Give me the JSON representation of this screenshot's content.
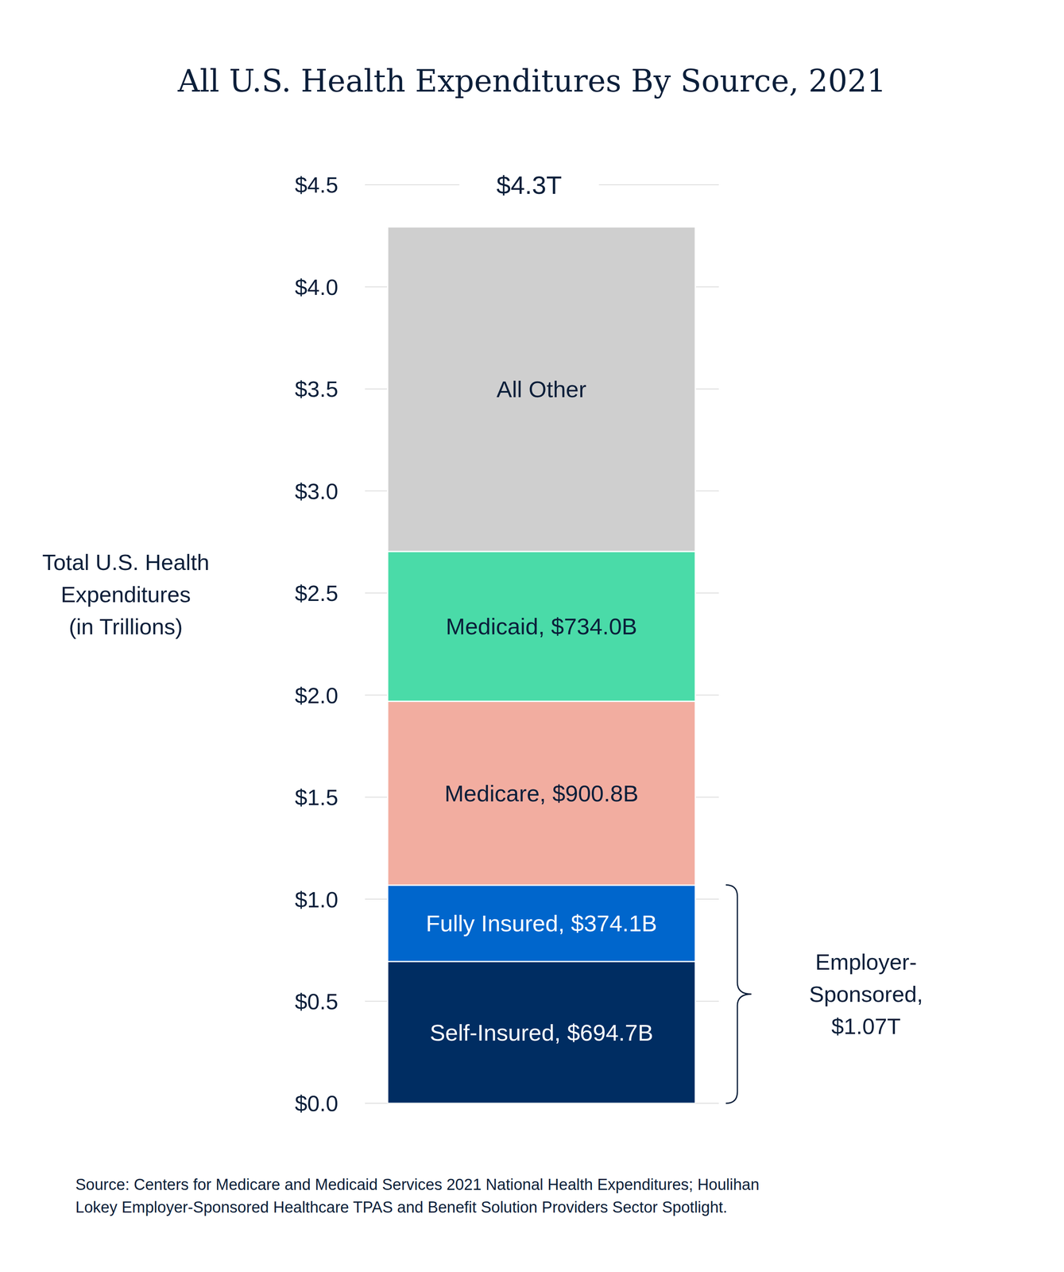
{
  "chart_data": {
    "type": "bar",
    "title": "All U.S. Health Expenditures By Source, 2021",
    "y_label": [
      "Total U.S. Health",
      "Expenditures",
      "(in Trillions)"
    ],
    "categories": [
      null
    ],
    "stacked": true,
    "data_labels": true,
    "grid": true,
    "tick_labels": "y",
    "ylim": [
      0,
      4.5
    ],
    "yticks": [
      {
        "value": 0,
        "label": "$0.0"
      },
      {
        "value": 0.5,
        "label": "$0.5"
      },
      {
        "value": 1,
        "label": "$1.0"
      },
      {
        "value": 1.5,
        "label": "$1.5"
      },
      {
        "value": 2,
        "label": "$2.0"
      },
      {
        "value": 2.5,
        "label": "$2.5"
      },
      {
        "value": 3,
        "label": "$3.0"
      },
      {
        "value": 3.5,
        "label": "$3.5"
      },
      {
        "value": 4,
        "label": "$4.0"
      },
      {
        "value": 4.5,
        "label": "$4.5"
      }
    ],
    "series": [
      {
        "color": "#002d62",
        "values": [
          0.6947
        ],
        "value_labels": [
          "Self-Insured, $694.7B"
        ]
      },
      {
        "color": "#0066cc",
        "values": [
          0.3741
        ],
        "value_labels": [
          "Fully Insured, $374.1B"
        ]
      },
      {
        "color": "#f2ada0",
        "values": [
          0.9008
        ],
        "value_labels": [
          "Medicare, $900.8B"
        ]
      },
      {
        "color": "#4adba8",
        "values": [
          0.734
        ],
        "value_labels": [
          "Medicaid, $734.0B"
        ]
      },
      {
        "color": "#cfcfcf",
        "values": [
          1.59
        ],
        "value_labels": [
          "All Other"
        ]
      }
    ],
    "annotations": [
      {
        "text": "$4.3T"
      },
      {
        "text": [
          "Employer-",
          "Sponsored,",
          "$1.07T"
        ],
        "value": 1.07
      }
    ],
    "source": [
      "Source: Centers for Medicare and Medicaid Services 2021 National Health Expenditures; Houlihan",
      "Lokey Employer-Sponsored Healthcare TPAS and Benefit Solution Providers Sector Spotlight."
    ]
  }
}
